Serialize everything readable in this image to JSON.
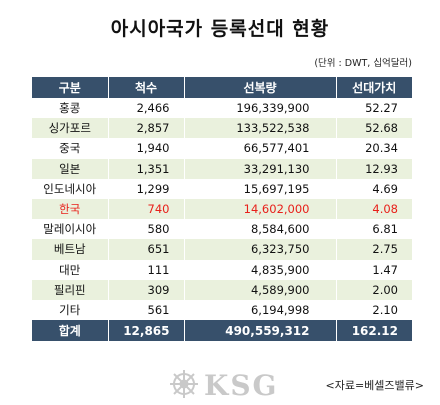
{
  "title": "아시아국가 등록선대 현황",
  "unit_note": "(단위 : DWT, 십억달러)",
  "columns": [
    "구분",
    "척수",
    "선복량",
    "선대가치"
  ],
  "rows": [
    {
      "name": "홍콩",
      "ships": "2,466",
      "tonnage": "196,339,900",
      "value": "52.27"
    },
    {
      "name": "싱가포르",
      "ships": "2,857",
      "tonnage": "133,522,538",
      "value": "52.68"
    },
    {
      "name": "중국",
      "ships": "1,940",
      "tonnage": "66,577,401",
      "value": "20.34"
    },
    {
      "name": "일본",
      "ships": "1,351",
      "tonnage": "33,291,130",
      "value": "12.93"
    },
    {
      "name": "인도네시아",
      "ships": "1,299",
      "tonnage": "15,697,195",
      "value": "4.69"
    },
    {
      "name": "한국",
      "ships": "740",
      "tonnage": "14,602,000",
      "value": "4.08",
      "highlight": true
    },
    {
      "name": "말레이시아",
      "ships": "580",
      "tonnage": "8,584,600",
      "value": "6.81"
    },
    {
      "name": "베트남",
      "ships": "651",
      "tonnage": "6,323,750",
      "value": "2.75"
    },
    {
      "name": "대만",
      "ships": "111",
      "tonnage": "4,835,900",
      "value": "1.47"
    },
    {
      "name": "필리핀",
      "ships": "309",
      "tonnage": "4,589,900",
      "value": "2.00"
    },
    {
      "name": "기타",
      "ships": "561",
      "tonnage": "6,194,998",
      "value": "2.10"
    }
  ],
  "total": {
    "name": "합계",
    "ships": "12,865",
    "tonnage": "490,559,312",
    "value": "162.12"
  },
  "watermark_text": "KSG",
  "source": "<자료=베셀즈밸류>",
  "colors": {
    "header_bg": "#37506b",
    "stripe": "#eaf1dd",
    "highlight": "#e8201a",
    "watermark": "#c9c9c9"
  },
  "chart_data": {
    "type": "table",
    "title": "아시아국가 등록선대 현황",
    "unit": "(단위 : DWT, 십억달러)",
    "columns": [
      "구분",
      "척수",
      "선복량",
      "선대가치"
    ],
    "rows": [
      [
        "홍콩",
        2466,
        196339900,
        52.27
      ],
      [
        "싱가포르",
        2857,
        133522538,
        52.68
      ],
      [
        "중국",
        1940,
        66577401,
        20.34
      ],
      [
        "일본",
        1351,
        33291130,
        12.93
      ],
      [
        "인도네시아",
        1299,
        15697195,
        4.69
      ],
      [
        "한국",
        740,
        14602000,
        4.08
      ],
      [
        "말레이시아",
        580,
        8584600,
        6.81
      ],
      [
        "베트남",
        651,
        6323750,
        2.75
      ],
      [
        "대만",
        111,
        4835900,
        1.47
      ],
      [
        "필리핀",
        309,
        4589900,
        2.0
      ],
      [
        "기타",
        561,
        6194998,
        2.1
      ]
    ],
    "total": [
      "합계",
      12865,
      490559312,
      162.12
    ],
    "highlight_row": "한국"
  }
}
